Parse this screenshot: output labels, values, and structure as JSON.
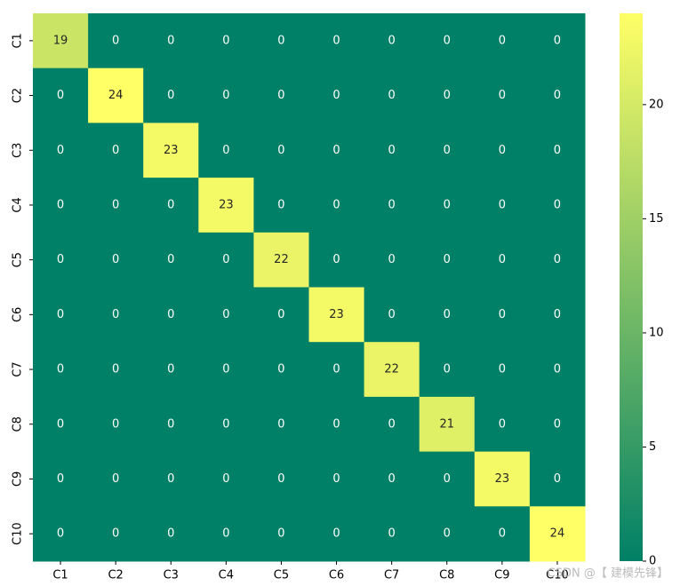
{
  "chart_data": {
    "type": "heatmap",
    "x_categories": [
      "C1",
      "C2",
      "C3",
      "C4",
      "C5",
      "C6",
      "C7",
      "C8",
      "C9",
      "C10"
    ],
    "y_categories": [
      "C1",
      "C2",
      "C3",
      "C4",
      "C5",
      "C6",
      "C7",
      "C8",
      "C9",
      "C10"
    ],
    "values": [
      [
        19,
        0,
        0,
        0,
        0,
        0,
        0,
        0,
        0,
        0
      ],
      [
        0,
        24,
        0,
        0,
        0,
        0,
        0,
        0,
        0,
        0
      ],
      [
        0,
        0,
        23,
        0,
        0,
        0,
        0,
        0,
        0,
        0
      ],
      [
        0,
        0,
        0,
        23,
        0,
        0,
        0,
        0,
        0,
        0
      ],
      [
        0,
        0,
        0,
        0,
        22,
        0,
        0,
        0,
        0,
        0
      ],
      [
        0,
        0,
        0,
        0,
        0,
        23,
        0,
        0,
        0,
        0
      ],
      [
        0,
        0,
        0,
        0,
        0,
        0,
        22,
        0,
        0,
        0
      ],
      [
        0,
        0,
        0,
        0,
        0,
        0,
        0,
        21,
        0,
        0
      ],
      [
        0,
        0,
        0,
        0,
        0,
        0,
        0,
        0,
        23,
        0
      ],
      [
        0,
        0,
        0,
        0,
        0,
        0,
        0,
        0,
        0,
        24
      ]
    ],
    "colors": [
      "#008066",
      "#ffff66"
    ],
    "zlim": [
      0,
      24
    ],
    "colorbar_ticks": [
      0,
      5,
      10,
      15,
      20
    ]
  },
  "watermark": "CSDN @【 建模先锋】"
}
